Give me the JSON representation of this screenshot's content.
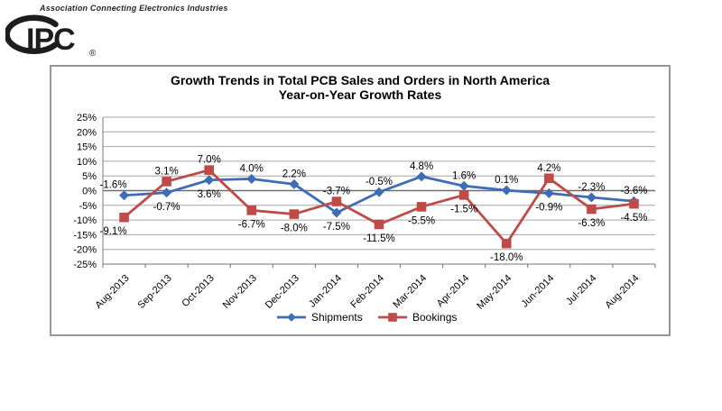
{
  "header": {
    "tagline": "Association Connecting Electronics Industries",
    "logo_text": "IPC",
    "logo_registered": "®"
  },
  "chart": {
    "title_line1": "Growth Trends in Total PCB Sales and Orders in North America",
    "title_line2": "Year-on-Year Growth Rates"
  },
  "chart_data": {
    "type": "line",
    "title": "Growth Trends in Total PCB Sales and Orders in North America",
    "subtitle": "Year-on-Year Growth Rates",
    "categories": [
      "Aug-2013",
      "Sep-2013",
      "Oct-2013",
      "Nov-2013",
      "Dec-2013",
      "Jan-2014",
      "Feb-2014",
      "Mar-2014",
      "Apr-2014",
      "May-2014",
      "Jun-2014",
      "Jul-2014",
      "Aug-2014"
    ],
    "series": [
      {
        "name": "Shipments",
        "marker": "diamond",
        "color": "#3E6DB5",
        "values": [
          -1.6,
          -0.7,
          3.6,
          4.0,
          2.2,
          -7.5,
          -0.5,
          4.8,
          1.6,
          0.1,
          -0.9,
          -2.3,
          -3.6
        ]
      },
      {
        "name": "Bookings",
        "marker": "square",
        "color": "#BE4B48",
        "values": [
          -9.1,
          3.1,
          7.0,
          -6.7,
          -8.0,
          -3.7,
          -11.5,
          -5.5,
          -1.5,
          -18.0,
          4.2,
          -6.3,
          -4.5
        ]
      }
    ],
    "y_axis": {
      "min": -25,
      "max": 25,
      "step": 5,
      "unit": "%"
    },
    "grid": true,
    "legend_position": "bottom",
    "data_labels": true,
    "colors": {
      "gridline": "#A6A6A6",
      "axis": "#8F8F8F",
      "zero_axis": "#6E6E6E",
      "label_text": "#000000"
    }
  }
}
